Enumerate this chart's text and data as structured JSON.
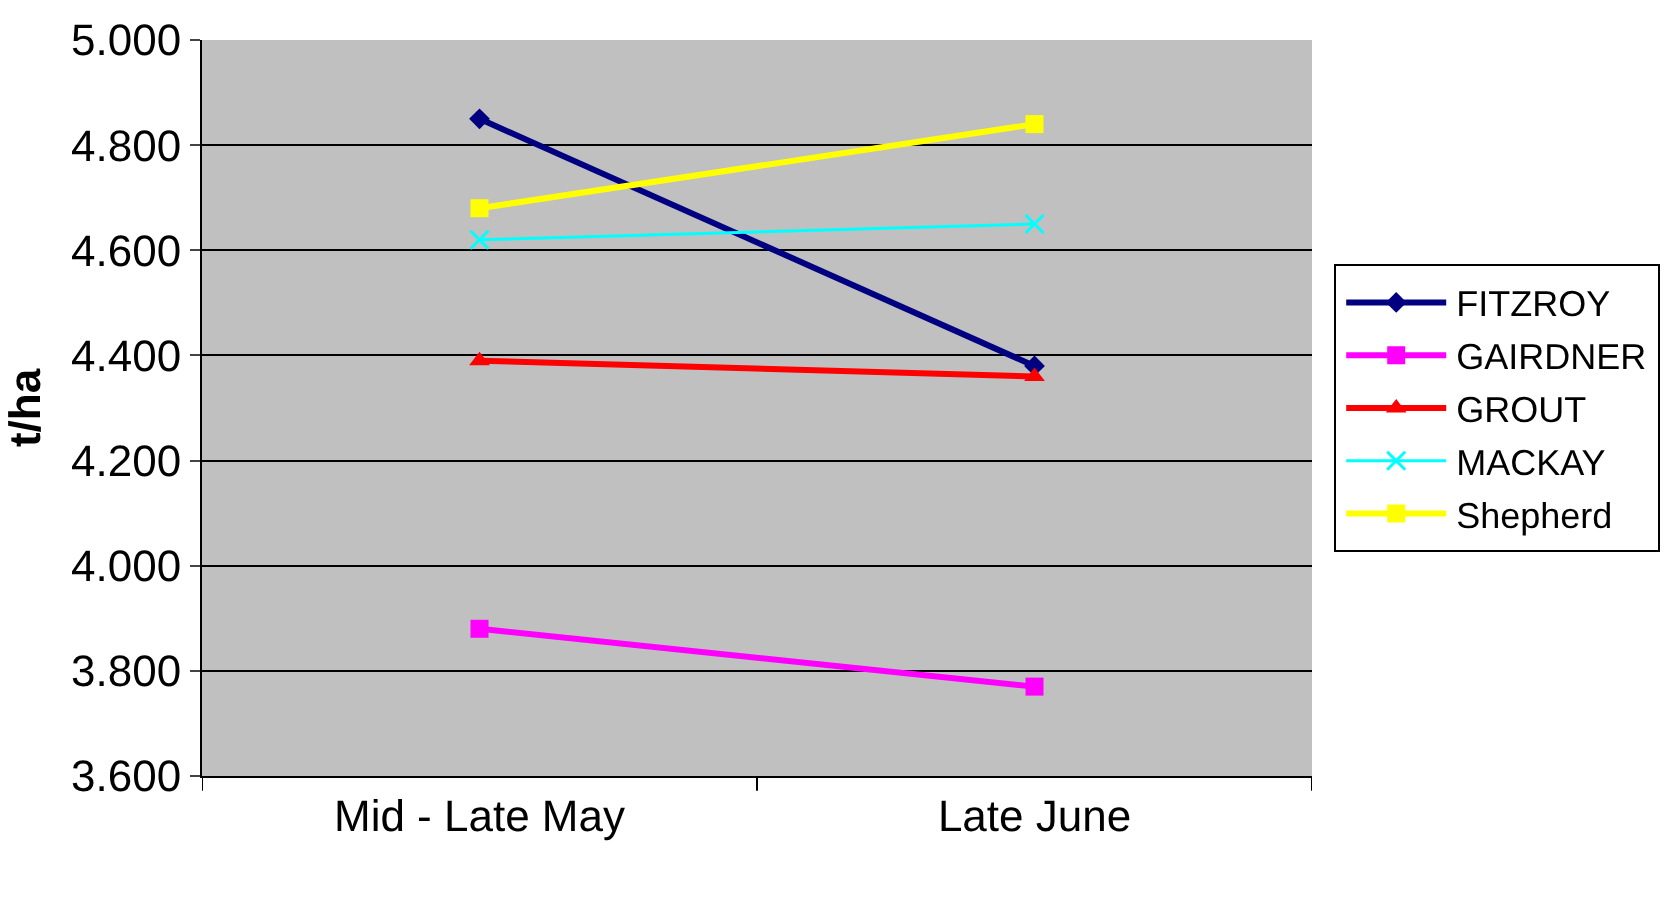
{
  "chart_data": {
    "type": "line",
    "ylabel": "t/ha",
    "categories": [
      "Mid - Late May",
      "Late June"
    ],
    "series": [
      {
        "name": "FITZROY",
        "color": "#000080",
        "marker": "diamond",
        "values": [
          4.85,
          4.38
        ]
      },
      {
        "name": "GAIRDNER",
        "color": "#ff00ff",
        "marker": "square",
        "values": [
          3.88,
          3.77
        ]
      },
      {
        "name": "GROUT",
        "color": "#ff0000",
        "marker": "triangle",
        "values": [
          4.39,
          4.36
        ]
      },
      {
        "name": "MACKAY",
        "color": "#00ffff",
        "marker": "cross",
        "values": [
          4.62,
          4.65
        ]
      },
      {
        "name": "Shepherd",
        "color": "#ffff00",
        "marker": "square",
        "values": [
          4.68,
          4.84
        ]
      }
    ],
    "ylim": [
      3.6,
      5.0
    ],
    "yticks": [
      {
        "value": 3.6,
        "label": "3.600"
      },
      {
        "value": 3.8,
        "label": "3.800"
      },
      {
        "value": 4.0,
        "label": "4.000"
      },
      {
        "value": 4.2,
        "label": "4.200"
      },
      {
        "value": 4.4,
        "label": "4.400"
      },
      {
        "value": 4.6,
        "label": "4.600"
      },
      {
        "value": 4.8,
        "label": "4.800"
      },
      {
        "value": 5.0,
        "label": "5.000"
      }
    ],
    "grid": "y",
    "legend": "right"
  }
}
